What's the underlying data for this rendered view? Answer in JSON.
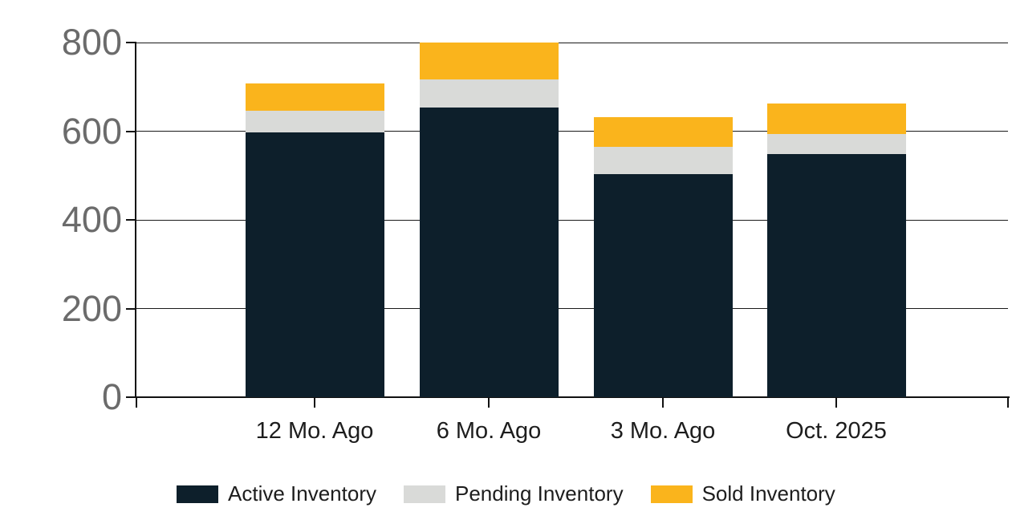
{
  "chart_data": {
    "type": "bar",
    "stacked": true,
    "title": "",
    "categories": [
      "12 Mo. Ago",
      "6 Mo. Ago",
      "3 Mo. Ago",
      "Oct. 2025"
    ],
    "series": [
      {
        "name": "Active Inventory",
        "color": "#0d1f2b",
        "values": [
          597,
          654,
          503,
          548
        ]
      },
      {
        "name": "Pending Inventory",
        "color": "#d9dad8",
        "values": [
          50,
          62,
          62,
          45
        ]
      },
      {
        "name": "Sold Inventory",
        "color": "#fab41c",
        "values": [
          60,
          84,
          66,
          70
        ]
      }
    ],
    "ylim": [
      0,
      800
    ],
    "yticks": [
      "0",
      "200",
      "400",
      "600",
      "800"
    ],
    "ytick_values": [
      0,
      200,
      400,
      600,
      800
    ],
    "grid": true,
    "legend_position": "bottom",
    "colors": {
      "background": "#ffffff",
      "axis": "#111111",
      "gridline": "#1a1a1a",
      "ytick_label": "#6b6b6b",
      "xtick_label": "#1d1d1d",
      "legend_text": "#1d1d1d"
    }
  }
}
